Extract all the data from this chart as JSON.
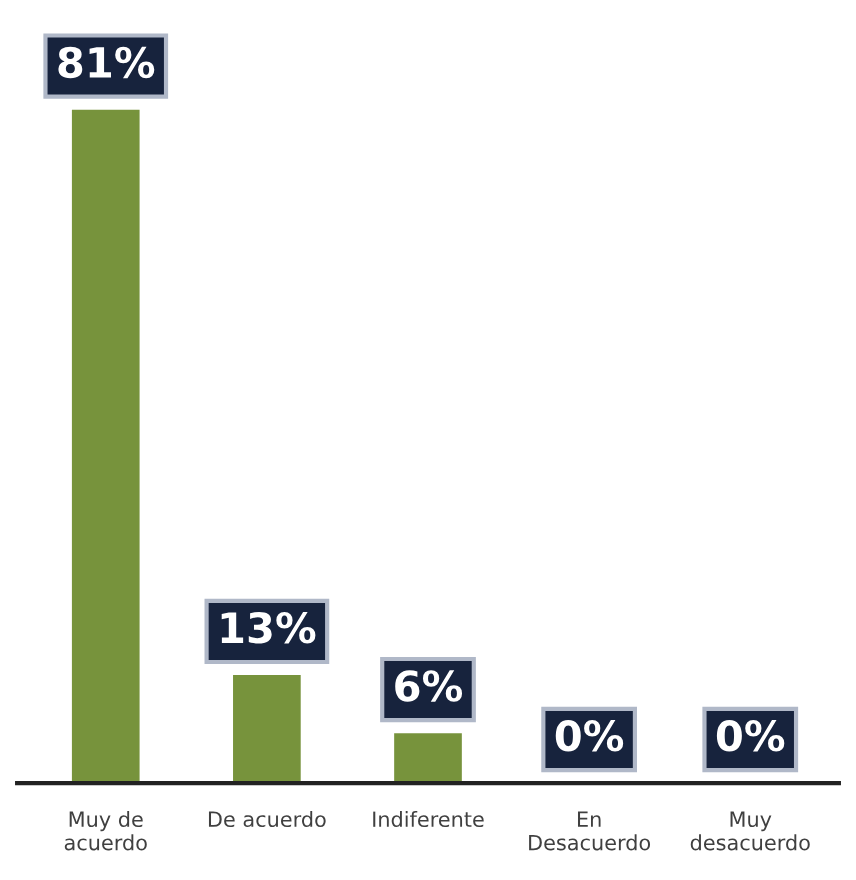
{
  "chart_data": {
    "type": "bar",
    "categories": [
      "Muy de\nacuerdo",
      "De acuerdo",
      "Indiferente",
      "En\nDesacuerdo",
      "Muy\ndesacuerdo"
    ],
    "values": [
      81,
      13,
      6,
      0,
      0
    ],
    "value_labels": [
      "81%",
      "13%",
      "6%",
      "0%",
      "0%"
    ],
    "color": "#77933c",
    "grid": false,
    "legend": false
  }
}
